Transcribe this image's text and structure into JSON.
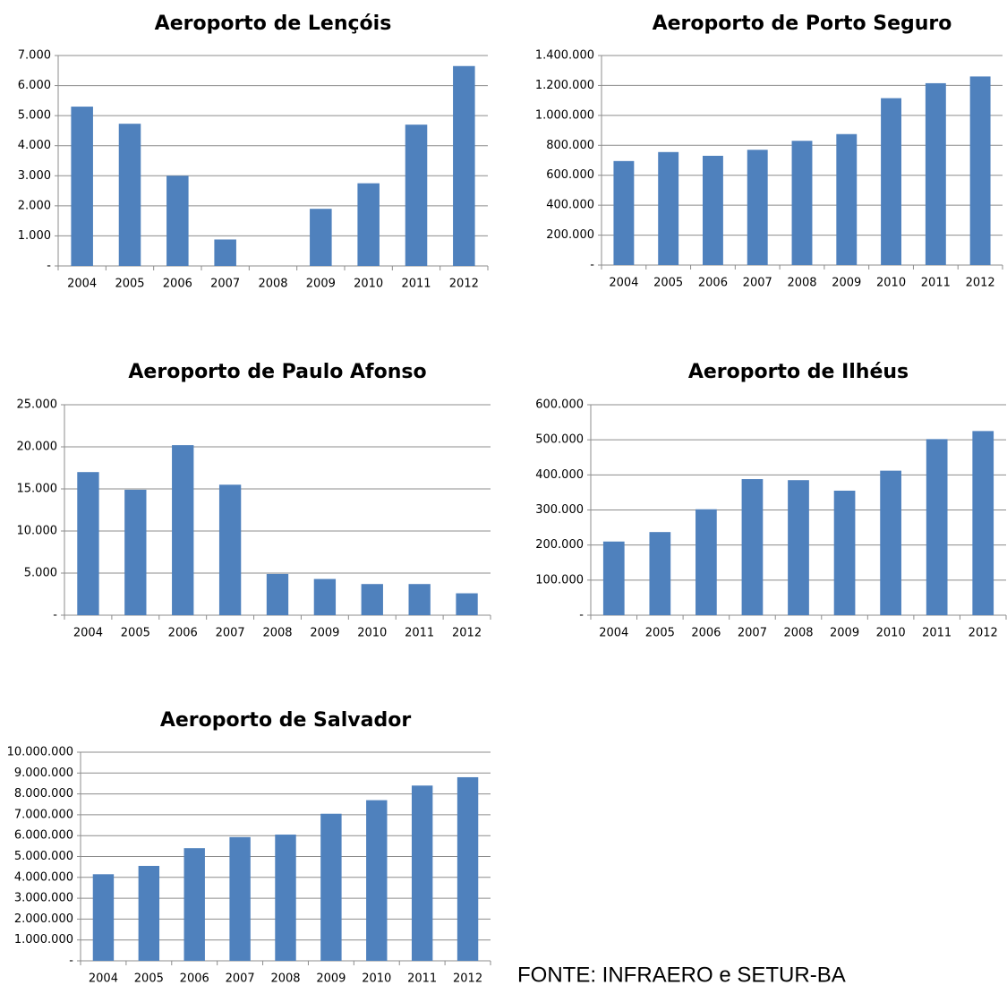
{
  "chart_data": [
    {
      "type": "bar",
      "title": "Aeroporto de Lençóis",
      "color": "#4f81bd",
      "grid": true,
      "categories": [
        "2004",
        "2005",
        "2006",
        "2007",
        "2008",
        "2009",
        "2010",
        "2011",
        "2012"
      ],
      "values": [
        5300,
        4730,
        3000,
        880,
        0,
        1900,
        2750,
        4700,
        6650
      ],
      "ylim": [
        0,
        7000
      ],
      "yticks": [
        {
          "value": 0,
          "label": "-"
        },
        {
          "value": 1000,
          "label": "1.000"
        },
        {
          "value": 2000,
          "label": "2.000"
        },
        {
          "value": 3000,
          "label": "3.000"
        },
        {
          "value": 4000,
          "label": "4.000"
        },
        {
          "value": 5000,
          "label": "5.000"
        },
        {
          "value": 6000,
          "label": "6.000"
        },
        {
          "value": 7000,
          "label": "7.000"
        }
      ]
    },
    {
      "type": "bar",
      "title": "Aeroporto de Porto Seguro",
      "color": "#4f81bd",
      "grid": true,
      "categories": [
        "2004",
        "2005",
        "2006",
        "2007",
        "2008",
        "2009",
        "2010",
        "2011",
        "2012"
      ],
      "values": [
        695000,
        755000,
        730000,
        770000,
        830000,
        875000,
        1115000,
        1215000,
        1260000
      ],
      "ylim": [
        0,
        1400000
      ],
      "yticks": [
        {
          "value": 0,
          "label": "-"
        },
        {
          "value": 200000,
          "label": "200.000"
        },
        {
          "value": 400000,
          "label": "400.000"
        },
        {
          "value": 600000,
          "label": "600.000"
        },
        {
          "value": 800000,
          "label": "800.000"
        },
        {
          "value": 1000000,
          "label": "1.000.000"
        },
        {
          "value": 1200000,
          "label": "1.200.000"
        },
        {
          "value": 1400000,
          "label": "1.400.000"
        }
      ]
    },
    {
      "type": "bar",
      "title": "Aeroporto de Paulo Afonso",
      "color": "#4f81bd",
      "grid": true,
      "categories": [
        "2004",
        "2005",
        "2006",
        "2007",
        "2008",
        "2009",
        "2010",
        "2011",
        "2012"
      ],
      "values": [
        17000,
        14900,
        20200,
        15500,
        4900,
        4300,
        3700,
        3700,
        2600
      ],
      "ylim": [
        0,
        25000
      ],
      "yticks": [
        {
          "value": 0,
          "label": "-"
        },
        {
          "value": 5000,
          "label": "5.000"
        },
        {
          "value": 10000,
          "label": "10.000"
        },
        {
          "value": 15000,
          "label": "15.000"
        },
        {
          "value": 20000,
          "label": "20.000"
        },
        {
          "value": 25000,
          "label": "25.000"
        }
      ]
    },
    {
      "type": "bar",
      "title": "Aeroporto de Ilhéus",
      "color": "#4f81bd",
      "grid": true,
      "categories": [
        "2004",
        "2005",
        "2006",
        "2007",
        "2008",
        "2009",
        "2010",
        "2011",
        "2012"
      ],
      "values": [
        210000,
        237000,
        302000,
        388000,
        385000,
        355000,
        412000,
        502000,
        525000
      ],
      "ylim": [
        0,
        600000
      ],
      "yticks": [
        {
          "value": 0,
          "label": "-"
        },
        {
          "value": 100000,
          "label": "100.000"
        },
        {
          "value": 200000,
          "label": "200.000"
        },
        {
          "value": 300000,
          "label": "300.000"
        },
        {
          "value": 400000,
          "label": "400.000"
        },
        {
          "value": 500000,
          "label": "500.000"
        },
        {
          "value": 600000,
          "label": "600.000"
        }
      ]
    },
    {
      "type": "bar",
      "title": "Aeroporto de Salvador",
      "color": "#4f81bd",
      "grid": true,
      "categories": [
        "2004",
        "2005",
        "2006",
        "2007",
        "2008",
        "2009",
        "2010",
        "2011",
        "2012"
      ],
      "values": [
        4150000,
        4550000,
        5400000,
        5930000,
        6050000,
        7050000,
        7700000,
        8400000,
        8800000
      ],
      "ylim": [
        0,
        10000000
      ],
      "yticks": [
        {
          "value": 0,
          "label": "-"
        },
        {
          "value": 1000000,
          "label": "1.000.000"
        },
        {
          "value": 2000000,
          "label": "2.000.000"
        },
        {
          "value": 3000000,
          "label": "3.000.000"
        },
        {
          "value": 4000000,
          "label": "4.000.000"
        },
        {
          "value": 5000000,
          "label": "5.000.000"
        },
        {
          "value": 6000000,
          "label": "6.000.000"
        },
        {
          "value": 7000000,
          "label": "7.000.000"
        },
        {
          "value": 8000000,
          "label": "8.000.000"
        },
        {
          "value": 9000000,
          "label": "9.000.000"
        },
        {
          "value": 10000000,
          "label": "10.000.000"
        }
      ]
    }
  ],
  "source": "FONTE: INFRAERO e SETUR-BA"
}
